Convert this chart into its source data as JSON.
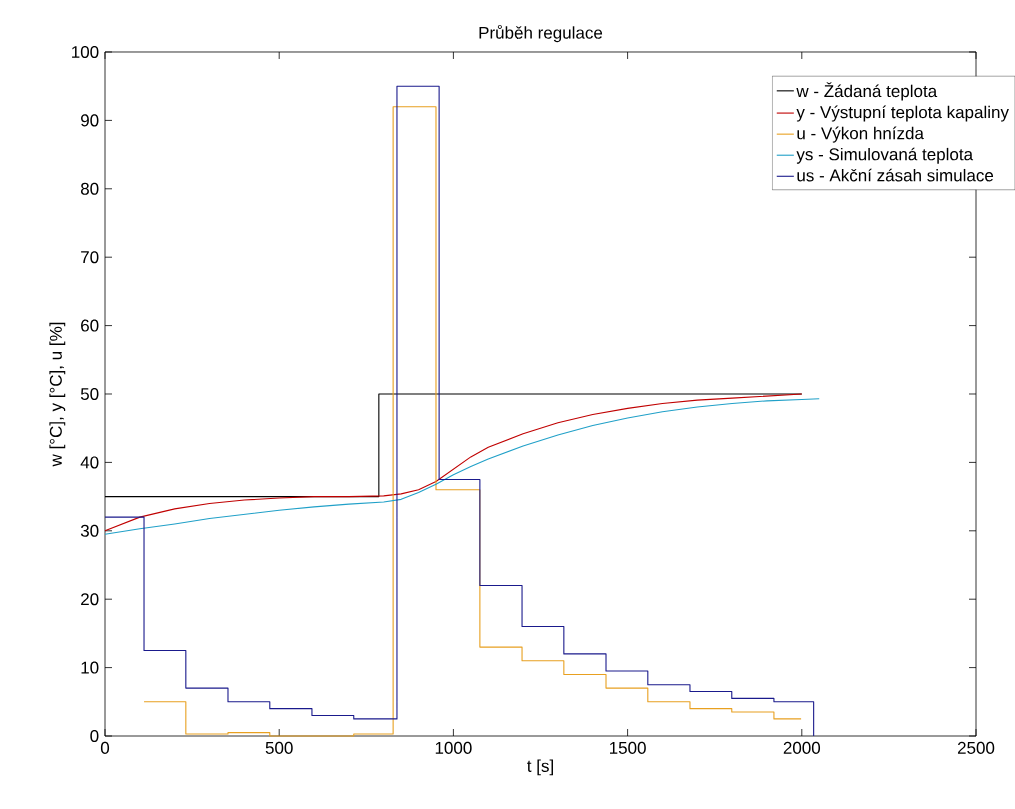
{
  "chart_data": {
    "type": "line",
    "title": "Průběh regulace",
    "xlabel": "t [s]",
    "ylabel": "w [°C], y [°C], u [%]",
    "xlim": [
      0,
      2500
    ],
    "xticks": [
      0,
      500,
      1000,
      1500,
      2000,
      2500
    ],
    "ylim": [
      0,
      100
    ],
    "yticks": [
      0,
      10,
      20,
      30,
      40,
      50,
      60,
      70,
      80,
      90,
      100
    ],
    "grid": false,
    "legend": "top right",
    "marker": "none",
    "line_style": "solid",
    "series": [
      {
        "name": "w - Žádaná teplota",
        "type": "step",
        "color": "#000000",
        "x": [
          0,
          786,
          2000
        ],
        "values": [
          35,
          50,
          50
        ]
      },
      {
        "name": "y - Výstupní teplota kapaliny",
        "type": "line",
        "color": "#c00000",
        "x": [
          0,
          100,
          200,
          300,
          400,
          500,
          600,
          700,
          800,
          850,
          900,
          950,
          1000,
          1050,
          1100,
          1200,
          1300,
          1400,
          1500,
          1600,
          1700,
          1800,
          1900,
          2000
        ],
        "values": [
          30,
          32,
          33.2,
          34,
          34.5,
          34.8,
          35,
          35,
          35.1,
          35.4,
          36,
          37.2,
          39,
          40.8,
          42.2,
          44.2,
          45.8,
          47,
          47.9,
          48.6,
          49.1,
          49.4,
          49.7,
          50
        ]
      },
      {
        "name": "u - Výkon hnízda",
        "type": "step",
        "color": "#e8a020",
        "x": [
          112,
          232,
          353,
          473,
          714,
          827,
          950,
          1076,
          1197,
          1317,
          1438,
          1558,
          1679,
          1799,
          1920,
          1998
        ],
        "values": [
          5,
          0.3,
          0.5,
          0,
          0.3,
          92,
          36,
          13,
          11,
          9,
          7,
          5,
          4,
          3.5,
          2.5,
          2.5
        ]
      },
      {
        "name": "ys - Simulovaná teplota",
        "type": "line",
        "color": "#20a0c8",
        "x": [
          0,
          100,
          200,
          300,
          400,
          500,
          600,
          700,
          800,
          850,
          900,
          950,
          1000,
          1050,
          1100,
          1200,
          1300,
          1400,
          1500,
          1600,
          1700,
          1800,
          1900,
          2000,
          2050
        ],
        "values": [
          29.5,
          30.3,
          31,
          31.8,
          32.4,
          33,
          33.5,
          33.9,
          34.2,
          34.6,
          35.6,
          36.8,
          38.2,
          39.4,
          40.5,
          42.4,
          44,
          45.4,
          46.5,
          47.4,
          48.1,
          48.6,
          49,
          49.2,
          49.3
        ]
      },
      {
        "name": "us - Akční zásah simulace",
        "type": "step",
        "color": "#1a1a8c",
        "x": [
          0,
          112,
          232,
          353,
          473,
          594,
          714,
          838,
          959,
          1076,
          1197,
          1317,
          1438,
          1558,
          1679,
          1799,
          1920,
          2034,
          2034
        ],
        "values": [
          32,
          12.5,
          7,
          5,
          4,
          3,
          2.5,
          95,
          37.5,
          22,
          16,
          12,
          9.5,
          7.5,
          6.5,
          5.5,
          5,
          0,
          0
        ]
      }
    ]
  }
}
